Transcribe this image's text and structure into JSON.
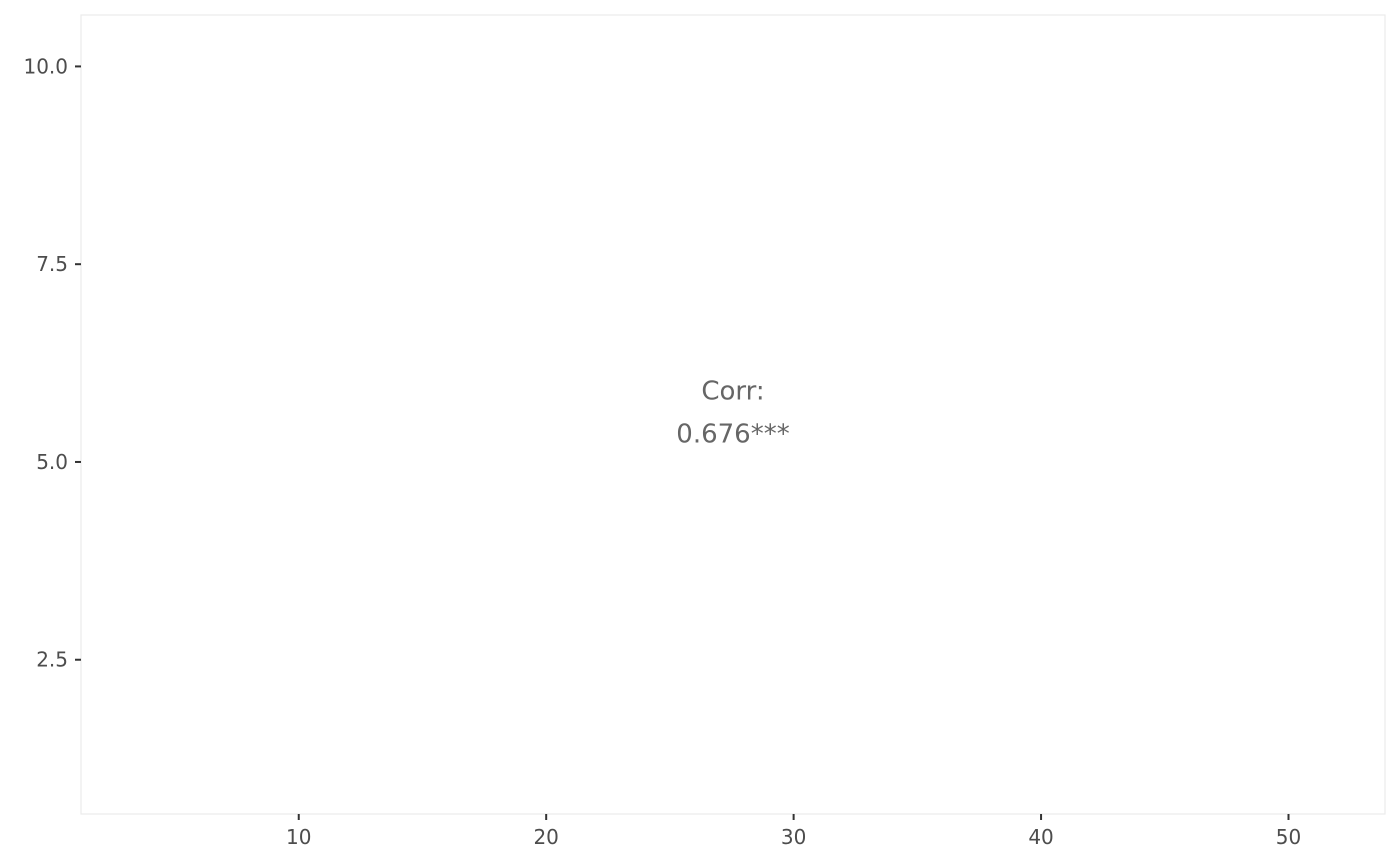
{
  "chart_data": {
    "type": "scatter",
    "title": "",
    "xlabel": "",
    "ylabel": "",
    "xlim": [
      1.2,
      53.9
    ],
    "ylim": [
      0.55,
      10.65
    ],
    "x_ticks": [
      10,
      20,
      30,
      40,
      50
    ],
    "x_tick_labels": [
      "10",
      "20",
      "30",
      "40",
      "50"
    ],
    "y_ticks": [
      2.5,
      5.0,
      7.5,
      10.0
    ],
    "y_tick_labels": [
      "2.5",
      "5.0",
      "7.5",
      "10.0"
    ],
    "grid": false,
    "legend": "none",
    "panel_border_color": "#ebebeb",
    "annotation": {
      "label": "Corr:",
      "value": "0.676***",
      "color": "#666666"
    }
  }
}
